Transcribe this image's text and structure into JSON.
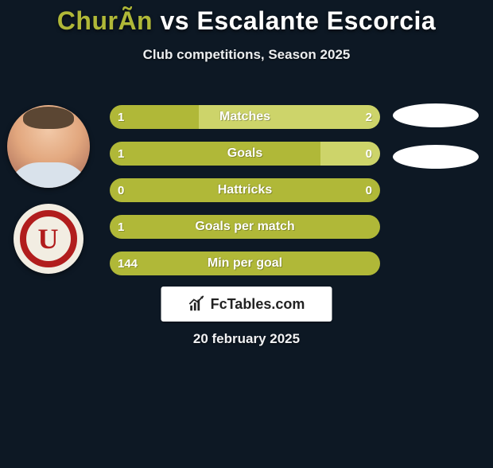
{
  "title": {
    "p1": "ChurÃ­n",
    "vs": "vs",
    "p2": "Escalante Escorcia"
  },
  "subtitle": "Club competitions, Season 2025",
  "colors": {
    "p1": "#b0b838",
    "p2": "#ffffff",
    "bar_p1": "#b6bd3a",
    "bar_p2": "#c8cf59",
    "bar_full": "#b6bd3a",
    "bg": "#0d1824"
  },
  "bars": [
    {
      "label": "Matches",
      "left_val": "1",
      "right_val": "2",
      "left_pct": 33,
      "right_pct": 67,
      "left_color": "#b0b838",
      "right_color": "#cdd46a"
    },
    {
      "label": "Goals",
      "left_val": "1",
      "right_val": "0",
      "left_pct": 78,
      "right_pct": 22,
      "left_color": "#b0b838",
      "right_color": "#cdd46a"
    },
    {
      "label": "Hattricks",
      "left_val": "0",
      "right_val": "0",
      "left_pct": 100,
      "right_pct": 0,
      "left_color": "#b0b838",
      "right_color": "#cdd46a"
    },
    {
      "label": "Goals per match",
      "left_val": "1",
      "right_val": "",
      "left_pct": 100,
      "right_pct": 0,
      "left_color": "#b0b838",
      "right_color": "#cdd46a"
    },
    {
      "label": "Min per goal",
      "left_val": "144",
      "right_val": "",
      "left_pct": 100,
      "right_pct": 0,
      "left_color": "#b0b838",
      "right_color": "#cdd46a"
    }
  ],
  "club_letter": "U",
  "brand": "FcTables.com",
  "date": "20 february 2025",
  "right_slots_count": 2
}
